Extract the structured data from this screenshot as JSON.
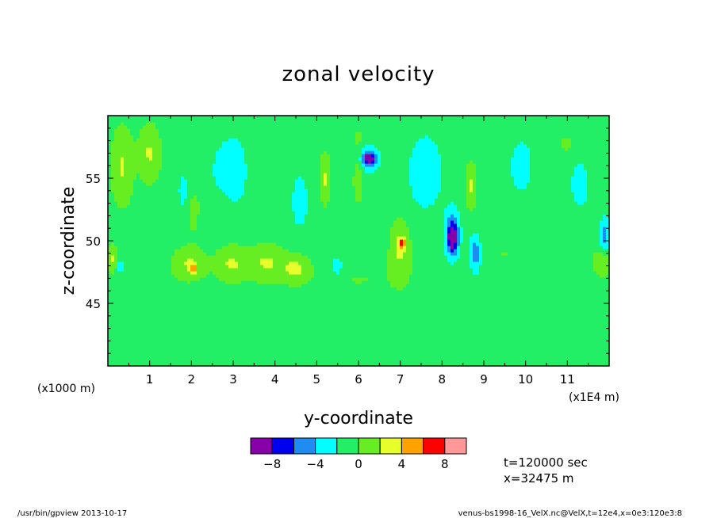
{
  "chart_data": {
    "type": "heatmap",
    "title": "zonal velocity",
    "xlabel": "y-coordinate",
    "ylabel": "z-coordinate",
    "x_unit": "(x1E4 m)",
    "y_unit": "(x1000 m)",
    "xlim": [
      0,
      12
    ],
    "ylim": [
      40,
      60
    ],
    "x_ticks": [
      "1",
      "2",
      "3",
      "4",
      "5",
      "6",
      "7",
      "8",
      "9",
      "10",
      "11"
    ],
    "y_ticks": [
      "45",
      "50",
      "55"
    ],
    "colorbar": {
      "levels": [
        -10,
        -8,
        -6,
        -4,
        -2,
        0,
        2,
        4,
        6,
        8,
        10
      ],
      "tick_labels": [
        "-8",
        "-4",
        "0",
        "4",
        "8"
      ],
      "colors": [
        "#8800aa",
        "#0000ee",
        "#1e8cf0",
        "#00ffff",
        "#22ee66",
        "#66ee22",
        "#e6ff2a",
        "#ffa200",
        "#ff0000",
        "#ff9999"
      ]
    },
    "background_value": -0.8,
    "features": [
      {
        "y": 0.35,
        "z": 56.0,
        "dy": 0.25,
        "dz": 3.0,
        "v": 3
      },
      {
        "y": 1.0,
        "z": 57.0,
        "dy": 0.25,
        "dz": 2.2,
        "v": 3
      },
      {
        "y": 0.1,
        "z": 48.6,
        "dy": 0.15,
        "dz": 1.0,
        "v": 3
      },
      {
        "y": 1.95,
        "z": 48.2,
        "dy": 0.4,
        "dz": 1.3,
        "v": 3
      },
      {
        "y": 2.05,
        "z": 52.0,
        "dy": 0.12,
        "dz": 2.0,
        "v": 1
      },
      {
        "y": 2.95,
        "z": 48.2,
        "dy": 0.35,
        "dz": 1.4,
        "v": 3
      },
      {
        "y": 3.4,
        "z": 55.5,
        "dy": 0.2,
        "dz": 2.5,
        "v": 1
      },
      {
        "y": 3.8,
        "z": 48.3,
        "dy": 0.45,
        "dz": 1.4,
        "v": 3
      },
      {
        "y": 4.5,
        "z": 47.8,
        "dy": 0.3,
        "dz": 1.0,
        "v": 3
      },
      {
        "y": 5.2,
        "z": 55.0,
        "dy": 0.12,
        "dz": 2.0,
        "v": 3
      },
      {
        "y": 6.0,
        "z": 56.0,
        "dy": 0.12,
        "dz": 2.5,
        "v": 3
      },
      {
        "y": 7.0,
        "z": 49.5,
        "dy": 0.22,
        "dz": 2.2,
        "v": 3
      },
      {
        "y": 8.7,
        "z": 54.5,
        "dy": 0.12,
        "dz": 1.8,
        "v": 3
      },
      {
        "y": 11.85,
        "z": 48.3,
        "dy": 0.2,
        "dz": 1.0,
        "v": 3
      },
      {
        "y": 11.0,
        "z": 57.8,
        "dy": 0.3,
        "dz": 1.2,
        "v": 1
      },
      {
        "y": 2.05,
        "z": 47.8,
        "dy": 0.07,
        "dz": 0.3,
        "v": 6
      },
      {
        "y": 7.05,
        "z": 49.8,
        "dy": 0.07,
        "dz": 0.4,
        "v": 6
      },
      {
        "y": 3.0,
        "z": 55.5,
        "dy": 0.5,
        "dz": 2.8,
        "v": -3
      },
      {
        "y": 1.8,
        "z": 54.0,
        "dy": 0.1,
        "dz": 1.2,
        "v": -3
      },
      {
        "y": 4.6,
        "z": 53.2,
        "dy": 0.18,
        "dz": 2.0,
        "v": -3
      },
      {
        "y": 6.2,
        "z": 56.6,
        "dy": 0.32,
        "dz": 1.1,
        "v": -4
      },
      {
        "y": 6.25,
        "z": 56.6,
        "dy": 0.15,
        "dz": 0.45,
        "v": -6
      },
      {
        "y": 7.6,
        "z": 55.5,
        "dy": 0.4,
        "dz": 3.0,
        "v": -3
      },
      {
        "y": 8.25,
        "z": 50.5,
        "dy": 0.22,
        "dz": 2.3,
        "v": -4
      },
      {
        "y": 8.25,
        "z": 50.3,
        "dy": 0.12,
        "dz": 1.2,
        "v": -7
      },
      {
        "y": 8.8,
        "z": 49.0,
        "dy": 0.15,
        "dz": 1.6,
        "v": -5
      },
      {
        "y": 9.9,
        "z": 56.0,
        "dy": 0.25,
        "dz": 2.0,
        "v": -3
      },
      {
        "y": 11.3,
        "z": 54.5,
        "dy": 0.2,
        "dz": 1.8,
        "v": -3
      },
      {
        "y": 11.9,
        "z": 50.5,
        "dy": 0.12,
        "dz": 1.5,
        "v": -4
      },
      {
        "y": 5.5,
        "z": 48.0,
        "dy": 0.12,
        "dz": 0.9,
        "v": -3
      },
      {
        "y": 0.3,
        "z": 48.0,
        "dy": 0.08,
        "dz": 0.5,
        "v": -3
      },
      {
        "y": 6.0,
        "z": 47.0,
        "dy": 1.6,
        "dz": 2.0,
        "v": 0.8
      },
      {
        "y": 9.5,
        "z": 49.0,
        "dy": 1.6,
        "dz": 3.0,
        "v": 0.8
      },
      {
        "y": 5.0,
        "z": 44.5,
        "dy": 2.0,
        "dz": 1.2,
        "v": 0.6
      },
      {
        "y": 10.0,
        "z": 44.0,
        "dy": 1.5,
        "dz": 1.0,
        "v": 0.6
      },
      {
        "y": 1.5,
        "z": 43.0,
        "dy": 1.5,
        "dz": 1.0,
        "v": 0.6
      },
      {
        "y": 2.5,
        "z": 53.0,
        "dy": 0.6,
        "dz": 1.5,
        "v": 0.8
      }
    ]
  },
  "info": {
    "time": "t=120000 sec",
    "x_position": "x=32475 m"
  },
  "footer": {
    "left": "/usr/bin/gpview  2013-10-17",
    "right": "venus-bs1998-16_VelX.nc@VelX,t=12e4,x=0e3:120e3:8"
  }
}
